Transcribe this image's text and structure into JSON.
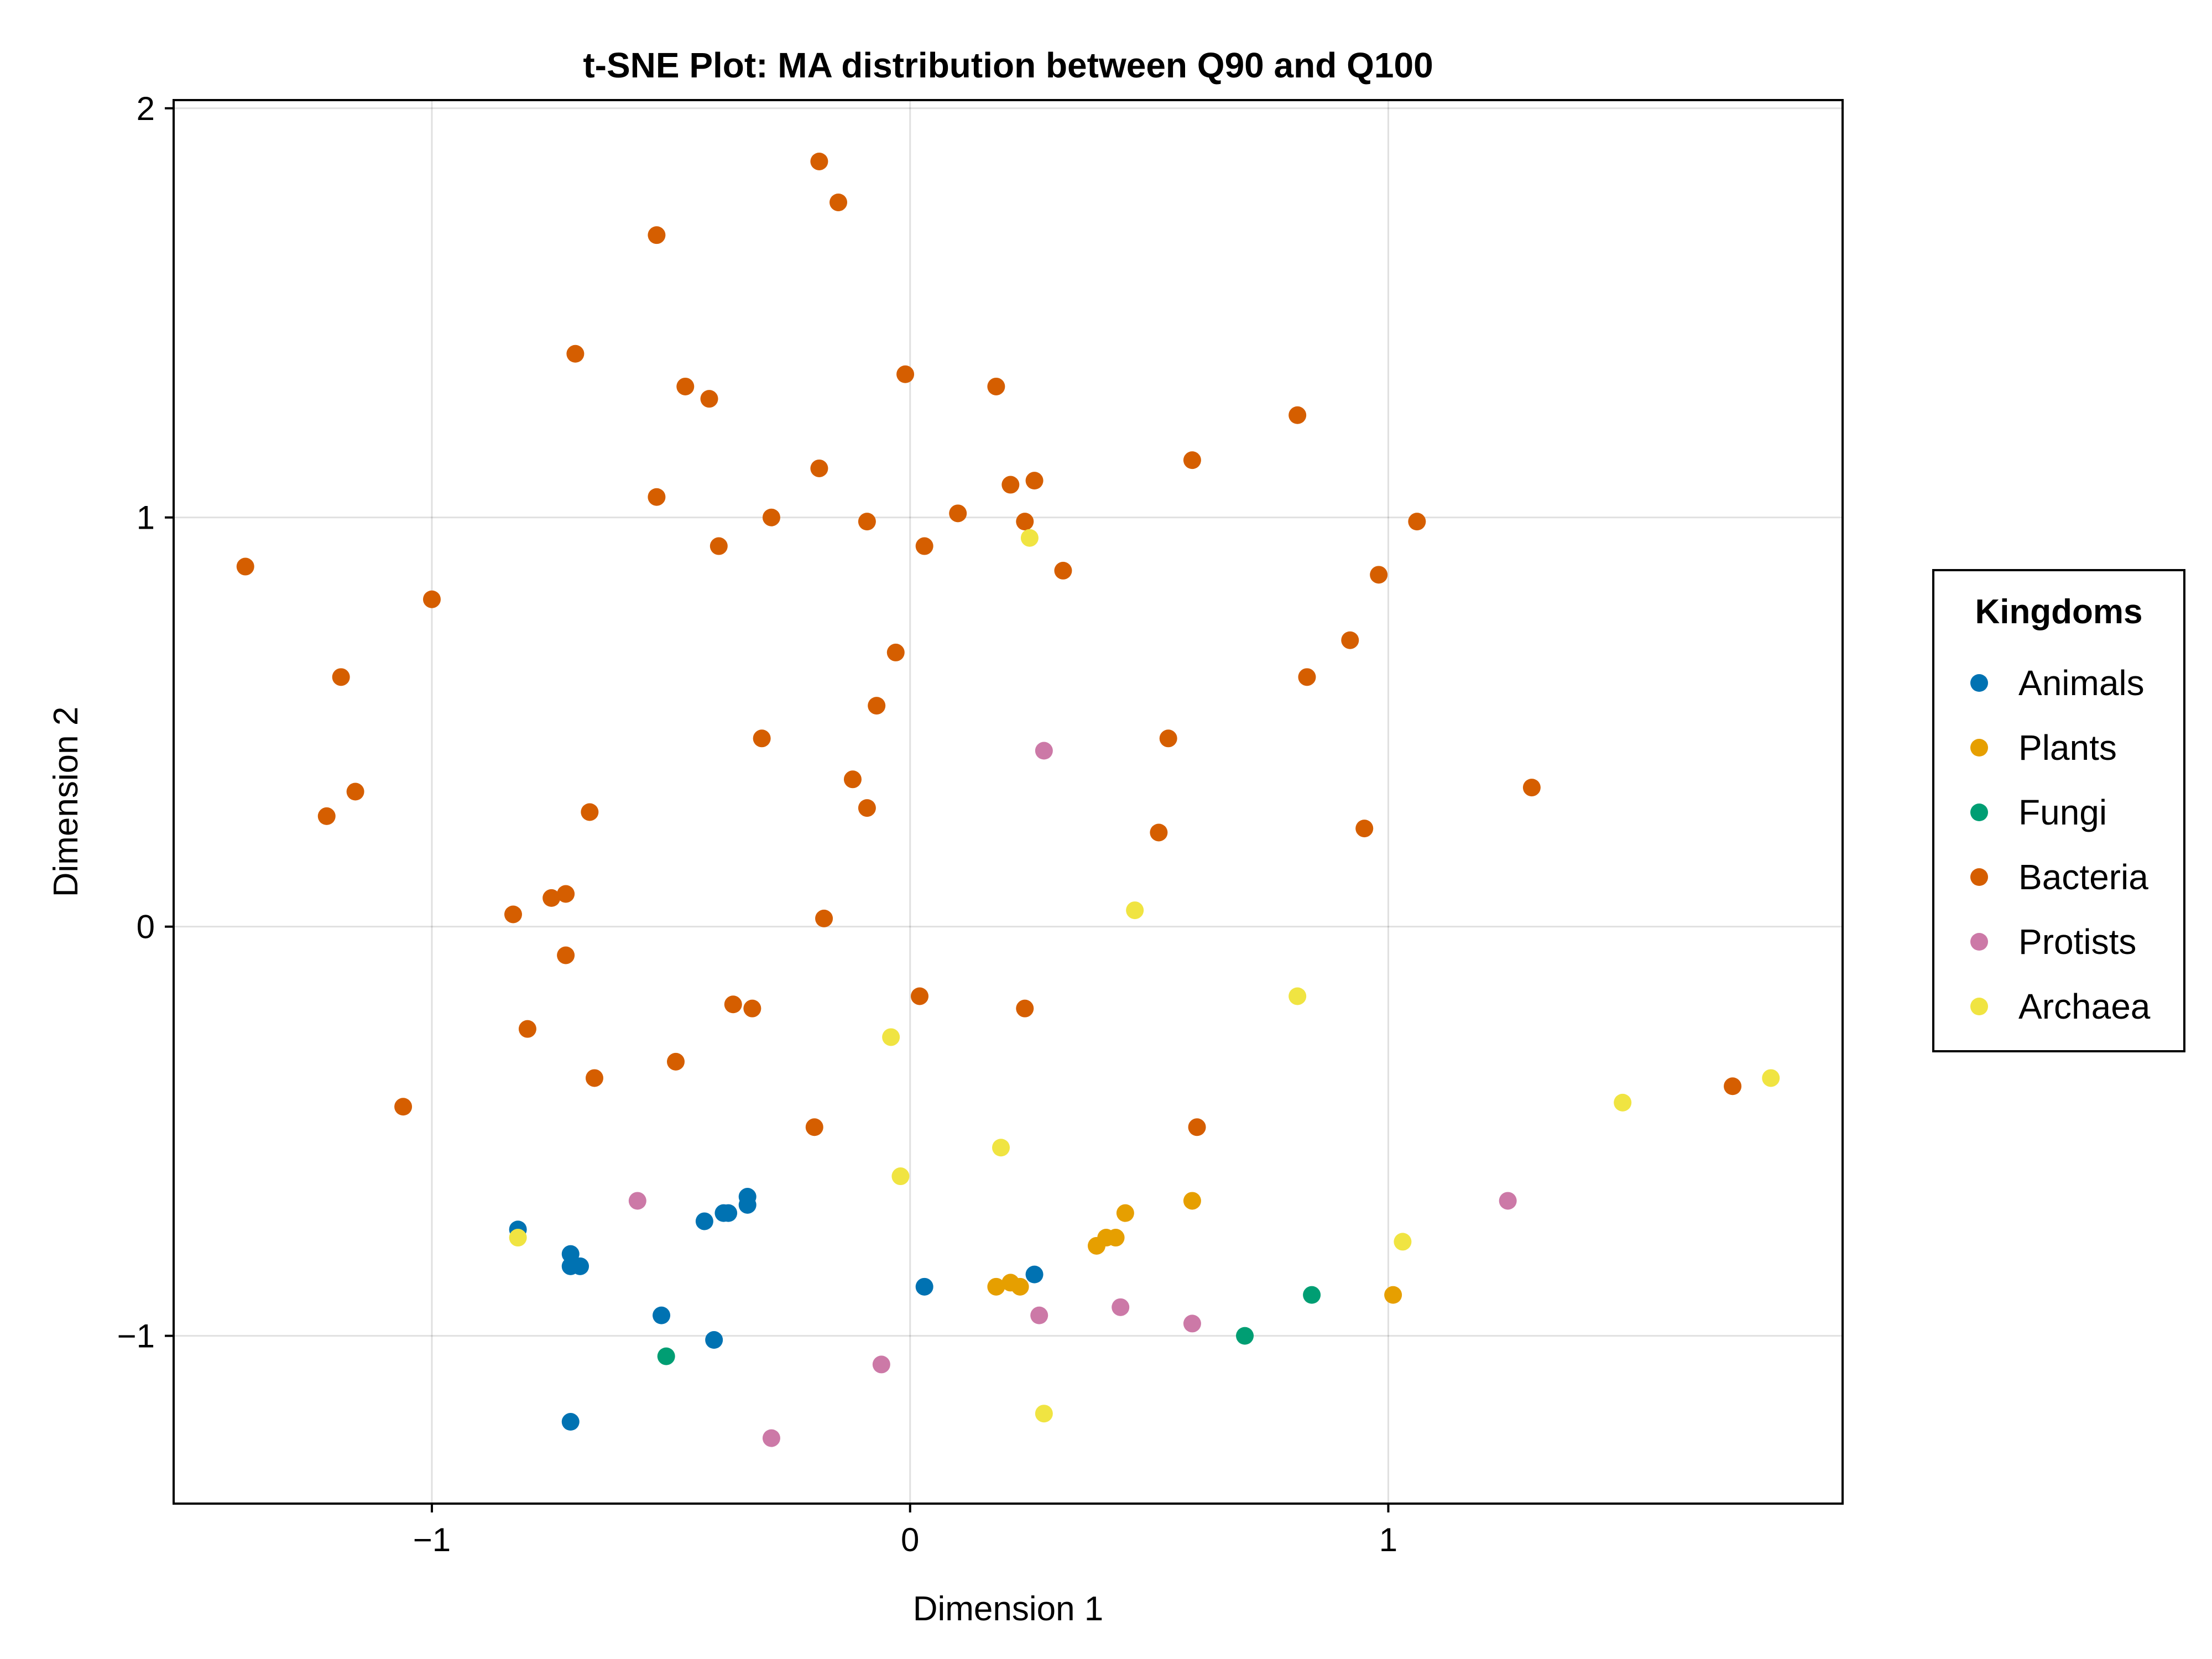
{
  "chart_data": {
    "type": "scatter",
    "title": "t-SNE Plot: MA distribution between Q90 and Q100",
    "xlabel": "Dimension 1",
    "ylabel": "Dimension 2",
    "xlim": [
      -1.54,
      1.95
    ],
    "ylim": [
      -1.41,
      2.02
    ],
    "xticks": [
      {
        "value": -1,
        "label": "−1"
      },
      {
        "value": 0,
        "label": "0"
      },
      {
        "value": 1,
        "label": "1"
      }
    ],
    "yticks": [
      {
        "value": -1,
        "label": "−1"
      },
      {
        "value": 0,
        "label": "0"
      },
      {
        "value": 1,
        "label": "1"
      },
      {
        "value": 2,
        "label": "2"
      }
    ],
    "grid": true,
    "legend": {
      "title": "Kingdoms",
      "position": "right"
    },
    "series": [
      {
        "name": "Animals",
        "color": "#0072b2",
        "points": [
          [
            -0.82,
            -0.74
          ],
          [
            -0.71,
            -0.8
          ],
          [
            -0.71,
            -0.83
          ],
          [
            -0.69,
            -0.83
          ],
          [
            -0.43,
            -0.72
          ],
          [
            -0.39,
            -0.7
          ],
          [
            -0.38,
            -0.7
          ],
          [
            -0.34,
            -0.66
          ],
          [
            -0.34,
            -0.68
          ],
          [
            -0.52,
            -0.95
          ],
          [
            -0.41,
            -1.01
          ],
          [
            -0.71,
            -1.21
          ],
          [
            0.03,
            -0.88
          ],
          [
            0.26,
            -0.85
          ]
        ]
      },
      {
        "name": "Plants",
        "color": "#e69f00",
        "points": [
          [
            0.18,
            -0.88
          ],
          [
            0.21,
            -0.87
          ],
          [
            0.23,
            -0.88
          ],
          [
            0.39,
            -0.78
          ],
          [
            0.41,
            -0.76
          ],
          [
            0.43,
            -0.76
          ],
          [
            0.45,
            -0.7
          ],
          [
            0.59,
            -0.67
          ],
          [
            1.01,
            -0.9
          ]
        ]
      },
      {
        "name": "Fungi",
        "color": "#009e73",
        "points": [
          [
            -0.51,
            -1.05
          ],
          [
            0.7,
            -1.0
          ],
          [
            0.84,
            -0.9
          ]
        ]
      },
      {
        "name": "Bacteria",
        "color": "#d55e00",
        "points": [
          [
            -0.19,
            1.87
          ],
          [
            -0.15,
            1.77
          ],
          [
            -0.53,
            1.69
          ],
          [
            -0.7,
            1.4
          ],
          [
            -0.47,
            1.32
          ],
          [
            -0.42,
            1.29
          ],
          [
            -0.01,
            1.35
          ],
          [
            0.18,
            1.32
          ],
          [
            0.81,
            1.25
          ],
          [
            -0.19,
            1.12
          ],
          [
            0.59,
            1.14
          ],
          [
            0.21,
            1.08
          ],
          [
            0.26,
            1.09
          ],
          [
            -0.53,
            1.05
          ],
          [
            0.1,
            1.01
          ],
          [
            -0.29,
            1.0
          ],
          [
            -0.09,
            0.99
          ],
          [
            0.24,
            0.99
          ],
          [
            1.06,
            0.99
          ],
          [
            -0.4,
            0.93
          ],
          [
            0.03,
            0.93
          ],
          [
            -1.39,
            0.88
          ],
          [
            0.32,
            0.87
          ],
          [
            0.98,
            0.86
          ],
          [
            -1.0,
            0.8
          ],
          [
            0.92,
            0.7
          ],
          [
            -0.03,
            0.67
          ],
          [
            -1.19,
            0.61
          ],
          [
            0.83,
            0.61
          ],
          [
            -0.07,
            0.54
          ],
          [
            0.54,
            0.46
          ],
          [
            -0.31,
            0.46
          ],
          [
            -0.12,
            0.36
          ],
          [
            -1.16,
            0.33
          ],
          [
            1.3,
            0.34
          ],
          [
            -0.09,
            0.29
          ],
          [
            -0.67,
            0.28
          ],
          [
            -1.22,
            0.27
          ],
          [
            0.95,
            0.24
          ],
          [
            0.52,
            0.23
          ],
          [
            -0.72,
            0.08
          ],
          [
            -0.75,
            0.07
          ],
          [
            -0.83,
            0.03
          ],
          [
            -0.18,
            0.02
          ],
          [
            -0.72,
            -0.07
          ],
          [
            0.02,
            -0.17
          ],
          [
            -0.37,
            -0.19
          ],
          [
            -0.33,
            -0.2
          ],
          [
            0.24,
            -0.2
          ],
          [
            -0.8,
            -0.25
          ],
          [
            -0.49,
            -0.33
          ],
          [
            -0.66,
            -0.37
          ],
          [
            -1.06,
            -0.44
          ],
          [
            -0.2,
            -0.49
          ],
          [
            0.6,
            -0.49
          ],
          [
            1.72,
            -0.39
          ]
        ]
      },
      {
        "name": "Protists",
        "color": "#cc79a7",
        "points": [
          [
            0.28,
            0.43
          ],
          [
            -0.57,
            -0.67
          ],
          [
            1.25,
            -0.67
          ],
          [
            0.27,
            -0.95
          ],
          [
            0.44,
            -0.93
          ],
          [
            0.59,
            -0.97
          ],
          [
            -0.06,
            -1.07
          ],
          [
            -0.29,
            -1.25
          ]
        ]
      },
      {
        "name": "Archaea",
        "color": "#f0e442",
        "points": [
          [
            0.25,
            0.95
          ],
          [
            0.47,
            0.04
          ],
          [
            0.81,
            -0.17
          ],
          [
            -0.04,
            -0.27
          ],
          [
            0.19,
            -0.54
          ],
          [
            -0.02,
            -0.61
          ],
          [
            1.49,
            -0.43
          ],
          [
            1.8,
            -0.37
          ],
          [
            -0.82,
            -0.76
          ],
          [
            1.03,
            -0.77
          ],
          [
            0.28,
            -1.19
          ]
        ]
      }
    ]
  }
}
